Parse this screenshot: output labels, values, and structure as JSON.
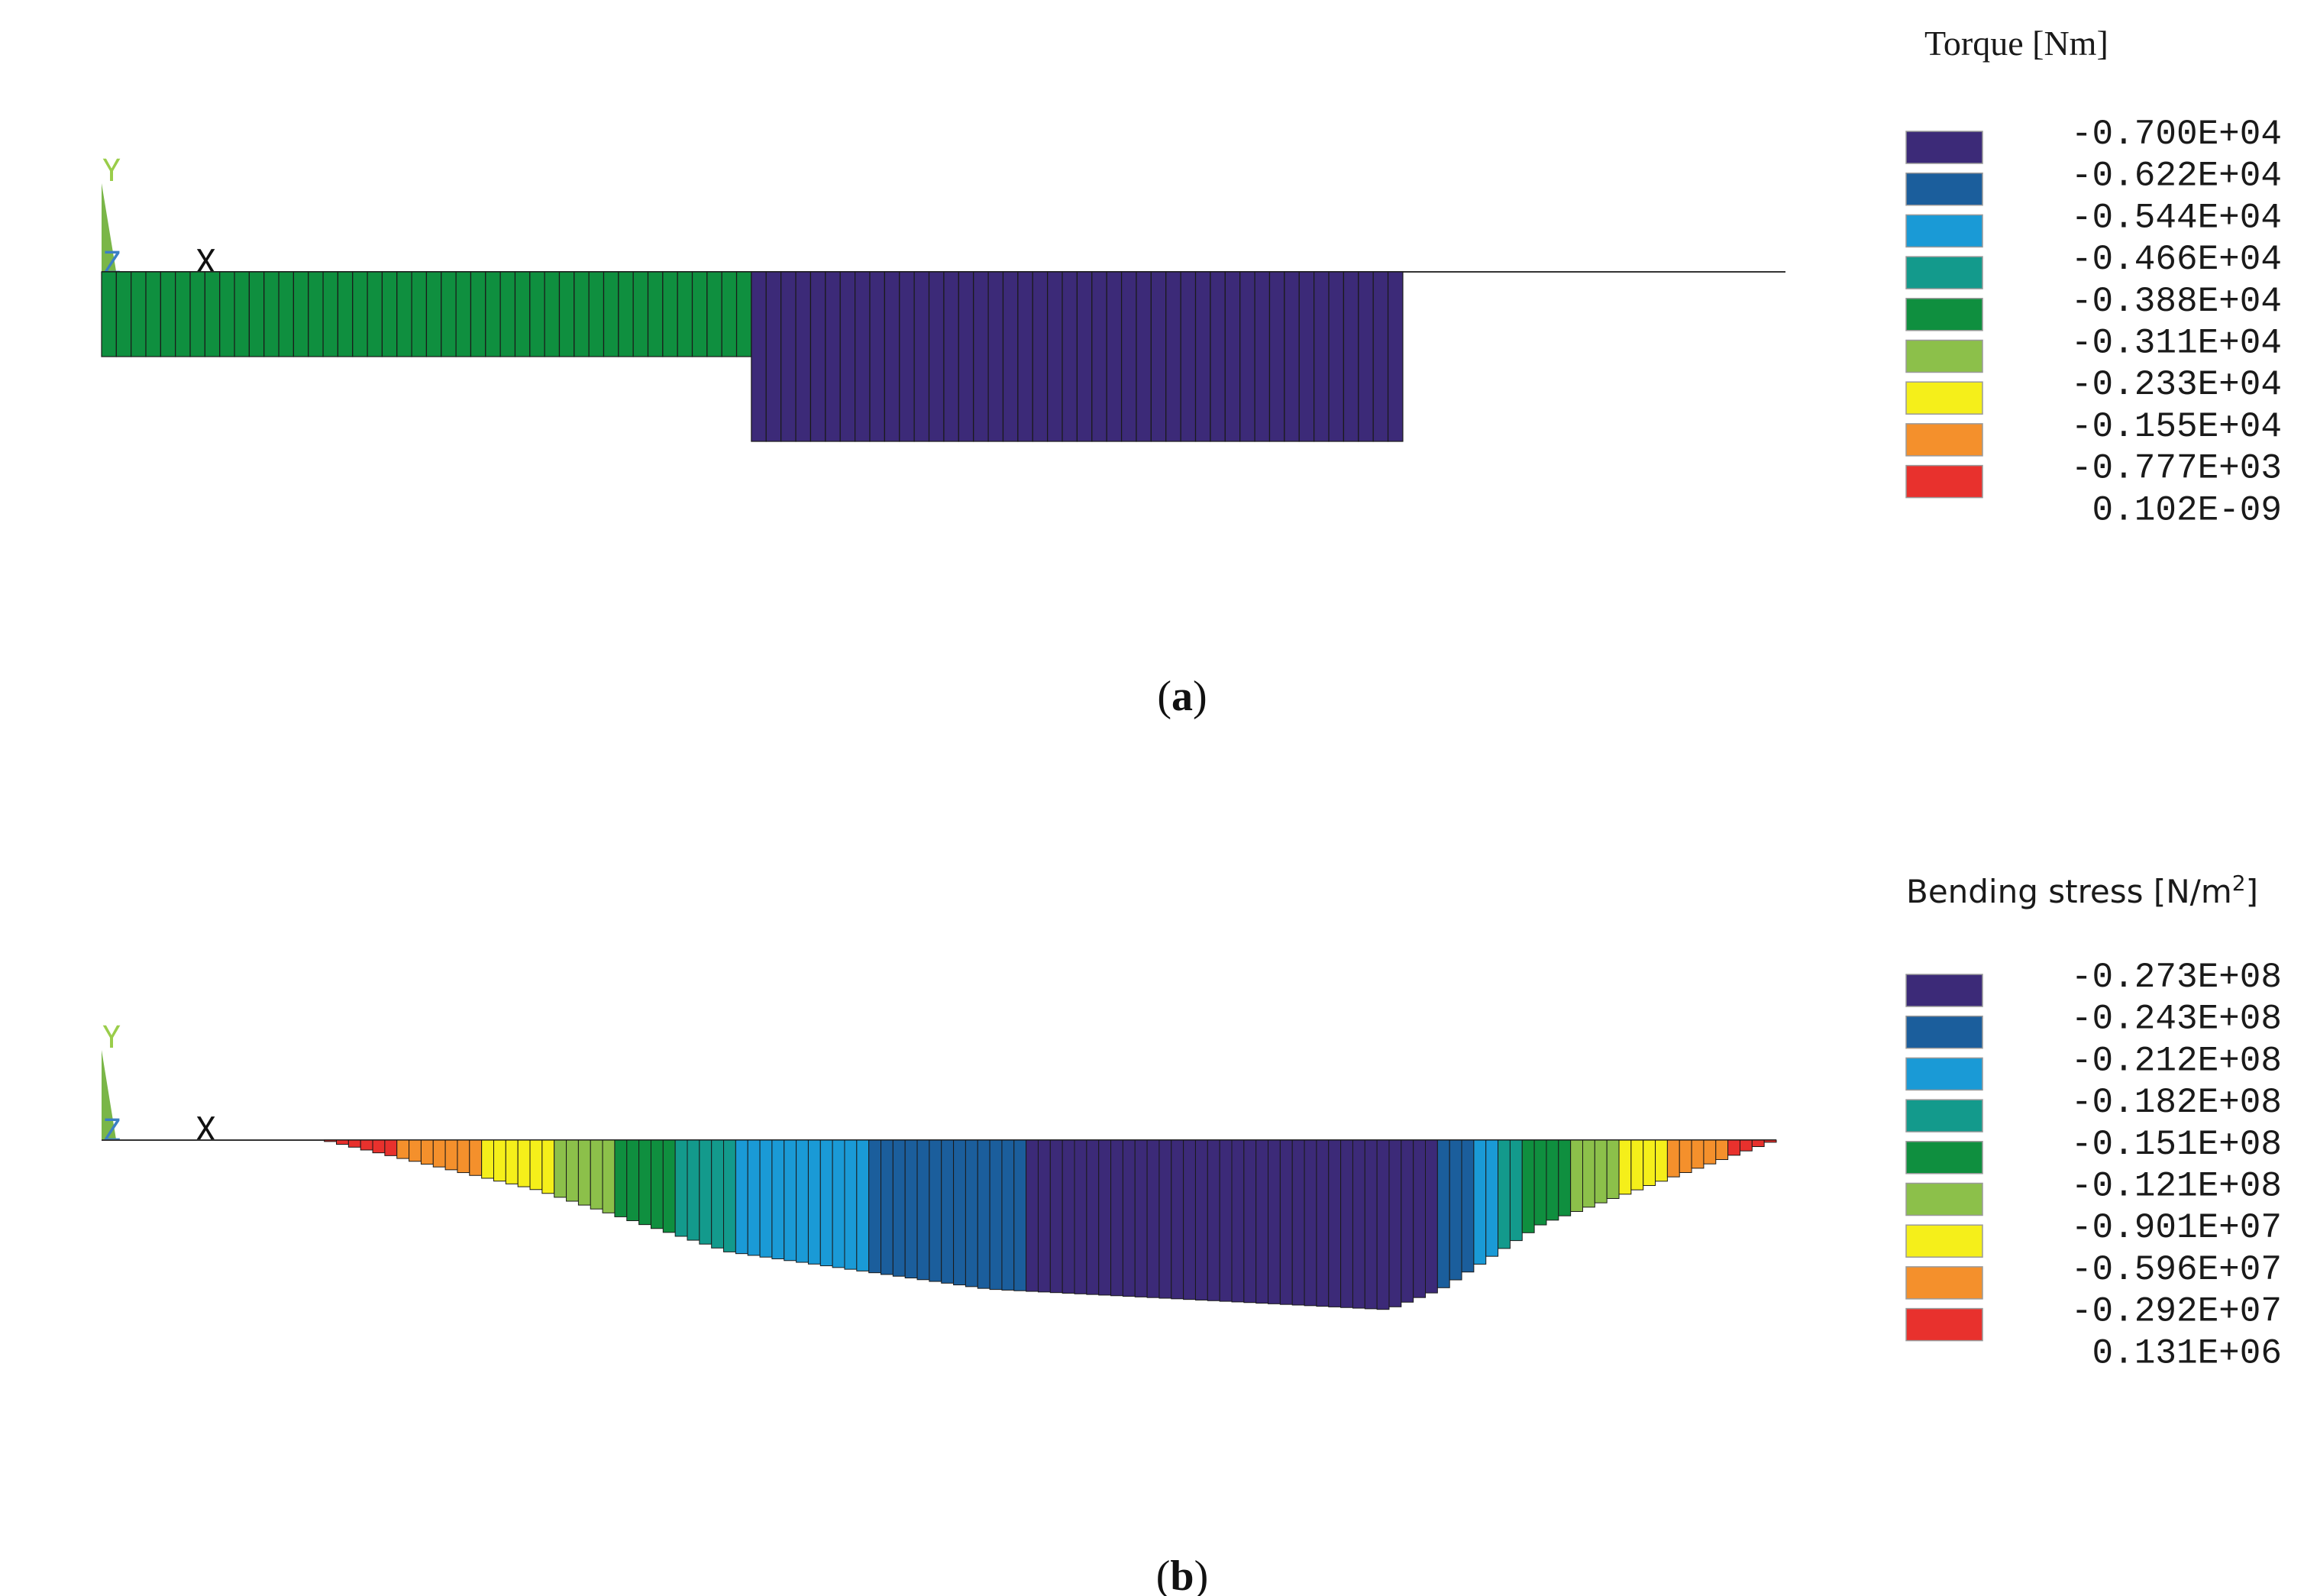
{
  "chart_data": [
    {
      "type": "bar",
      "panel_label": "(a)",
      "panel_letter": "a",
      "title": "Torque [Nm]",
      "axes": {
        "y": "Y",
        "z": "Z",
        "x": "X"
      },
      "legend": {
        "values": [
          "-0.700E+04",
          "-0.622E+04",
          "-0.544E+04",
          "-0.466E+04",
          "-0.388E+04",
          "-0.311E+04",
          "-0.233E+04",
          "-0.155E+04",
          "-0.777E+03",
          "0.102E-09"
        ],
        "colors": [
          "#3c2a78",
          "#1b5e9c",
          "#1a9ad6",
          "#139a8c",
          "#0f8f3f",
          "#8cc04a",
          "#f5ef1a",
          "#f4902c",
          "#e8312d"
        ],
        "placement": "right"
      },
      "segments": [
        {
          "x_start": 0,
          "x_end": 0.388,
          "n_elements": 44,
          "value": -3500,
          "color": "#0f8f3f"
        },
        {
          "x_start": 0.388,
          "x_end": 0.777,
          "n_elements": 44,
          "value": -7000,
          "color": "#3c2a78"
        }
      ],
      "xlim": [
        0,
        1
      ],
      "ylim": [
        -7000,
        0
      ]
    },
    {
      "type": "bar",
      "panel_label": "(b)",
      "panel_letter": "b",
      "title": "Bending stress [N/m²]",
      "title_main": "Bending stress [N/m",
      "title_sup": "2",
      "title_end": "]",
      "axes": {
        "y": "Y",
        "z": "Z",
        "x": "X"
      },
      "legend": {
        "values": [
          "-0.273E+08",
          "-0.243E+08",
          "-0.212E+08",
          "-0.182E+08",
          "-0.151E+08",
          "-0.121E+08",
          "-0.901E+07",
          "-0.596E+07",
          "-0.292E+07",
          "0.131E+06"
        ],
        "colors": [
          "#3c2a78",
          "#1b5e9c",
          "#1a9ad6",
          "#139a8c",
          "#0f8f3f",
          "#8cc04a",
          "#f5ef1a",
          "#f4902c",
          "#e8312d"
        ],
        "placement": "right"
      },
      "profile": {
        "x": [
          0.133,
          0.26,
          0.375,
          0.53,
          0.768,
          0.8,
          0.86,
          1.0
        ],
        "value": [
          0,
          -8000000,
          -18000000,
          -24000000,
          -27300000,
          -24000000,
          -13500000,
          0
        ]
      },
      "n_elements": 120,
      "xlim": [
        0,
        1
      ],
      "ylim": [
        -27300000,
        0
      ]
    }
  ]
}
